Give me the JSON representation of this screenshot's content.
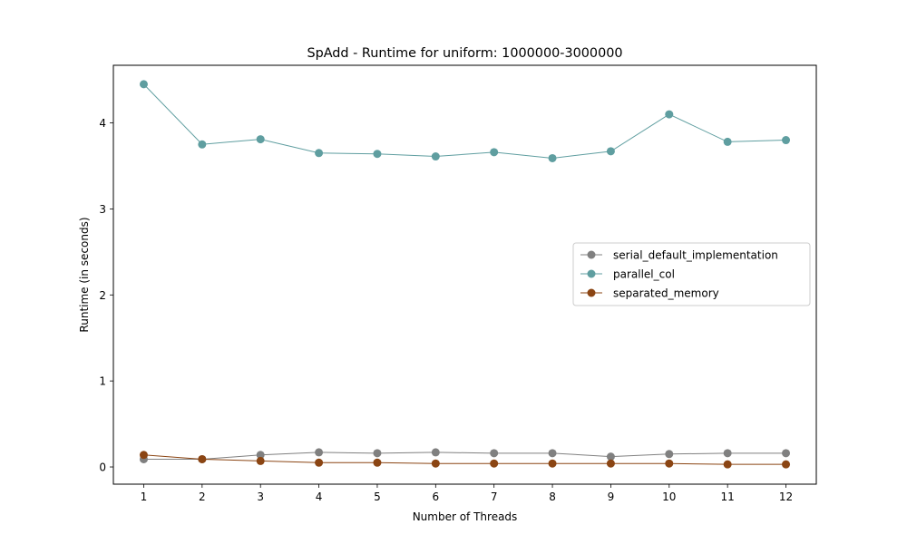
{
  "chart_data": {
    "type": "line",
    "title": "SpAdd - Runtime for uniform: 1000000-3000000",
    "xlabel": "Number of Threads",
    "ylabel": "Runtime (in seconds)",
    "x": [
      1,
      2,
      3,
      4,
      5,
      6,
      7,
      8,
      9,
      10,
      11,
      12
    ],
    "xlim": [
      0.48,
      12.52
    ],
    "ylim": [
      -0.2,
      4.67
    ],
    "yticks": [
      0,
      1,
      2,
      3,
      4
    ],
    "grid": false,
    "legend_position": "center-right",
    "series": [
      {
        "name": "serial_default_implementation",
        "color": "#808080",
        "values": [
          0.09,
          0.09,
          0.14,
          0.17,
          0.16,
          0.17,
          0.16,
          0.16,
          0.12,
          0.15,
          0.16,
          0.16
        ]
      },
      {
        "name": "parallel_col",
        "color": "#5f9ea0",
        "values": [
          4.45,
          3.75,
          3.81,
          3.65,
          3.64,
          3.61,
          3.66,
          3.59,
          3.67,
          4.1,
          3.78,
          3.8
        ]
      },
      {
        "name": "separated_memory",
        "color": "#8b4513",
        "values": [
          0.14,
          0.09,
          0.07,
          0.05,
          0.05,
          0.04,
          0.04,
          0.04,
          0.04,
          0.04,
          0.03,
          0.03
        ]
      }
    ]
  }
}
